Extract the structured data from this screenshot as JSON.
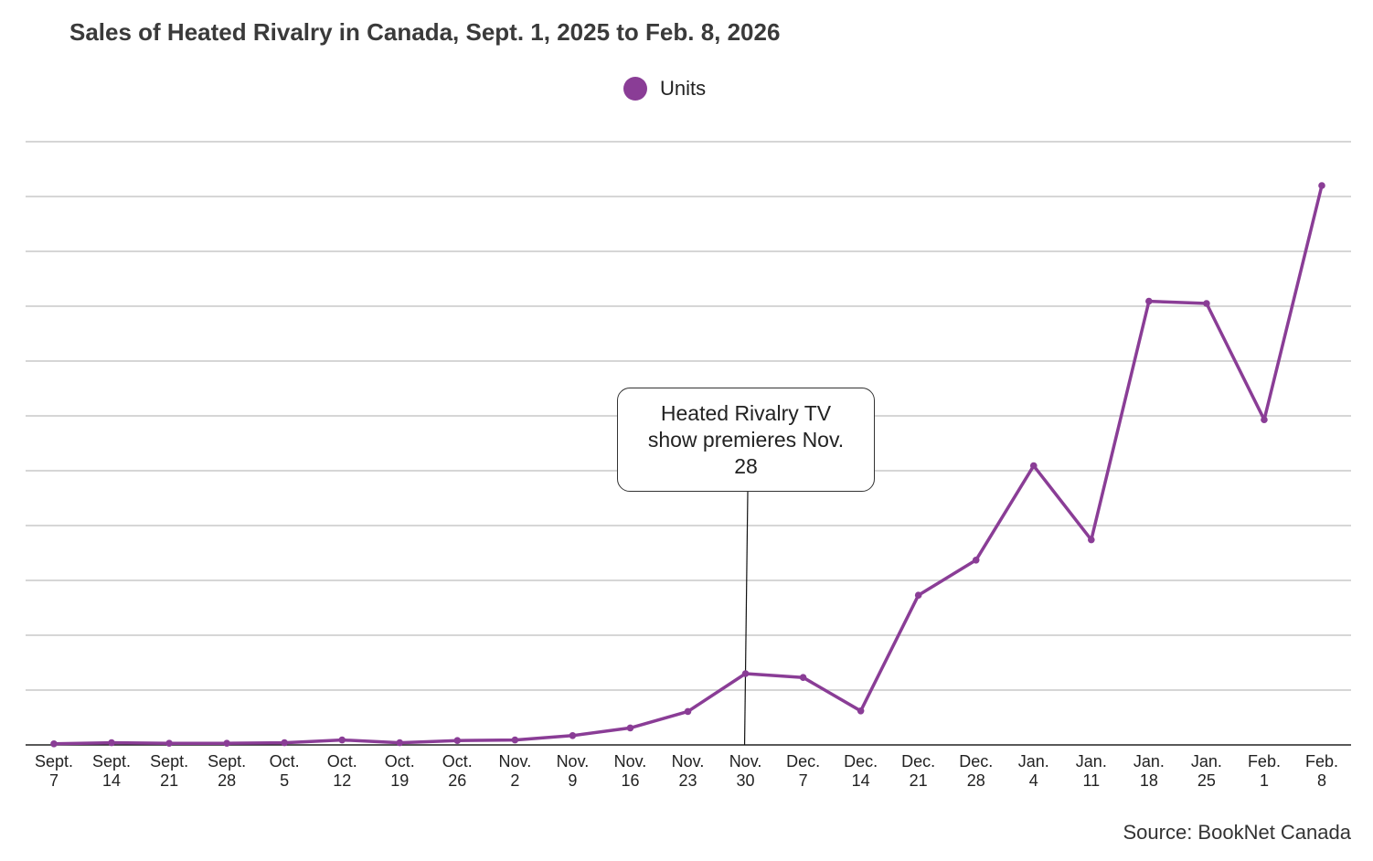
{
  "title": "Sales of Heated Rivalry in Canada, Sept. 1, 2025 to Feb. 8, 2026",
  "source": "Source: BookNet Canada",
  "annotation": {
    "text": "Heated Rivalry TV show premieres Nov. 28",
    "category": "Nov. 30"
  },
  "colors": {
    "series": "#8a3d96",
    "grid": "#c8c8c8",
    "axis": "#222222"
  },
  "chart_data": {
    "type": "line",
    "title": "Sales of Heated Rivalry in Canada, Sept. 1, 2025 to Feb. 8, 2026",
    "xlabel": "",
    "ylabel": "",
    "grid": true,
    "y_tick_labels_shown": false,
    "legend_placement": "top-center",
    "ylim": [
      0,
      11
    ],
    "categories": [
      [
        "Sept.",
        "7"
      ],
      [
        "Sept.",
        "14"
      ],
      [
        "Sept.",
        "21"
      ],
      [
        "Sept.",
        "28"
      ],
      [
        "Oct.",
        "5"
      ],
      [
        "Oct.",
        "12"
      ],
      [
        "Oct.",
        "19"
      ],
      [
        "Oct.",
        "26"
      ],
      [
        "Nov.",
        "2"
      ],
      [
        "Nov.",
        "9"
      ],
      [
        "Nov.",
        "16"
      ],
      [
        "Nov.",
        "23"
      ],
      [
        "Nov.",
        "30"
      ],
      [
        "Dec.",
        "7"
      ],
      [
        "Dec.",
        "14"
      ],
      [
        "Dec.",
        "21"
      ],
      [
        "Dec.",
        "28"
      ],
      [
        "Jan.",
        "4"
      ],
      [
        "Jan.",
        "11"
      ],
      [
        "Jan.",
        "18"
      ],
      [
        "Jan.",
        "25"
      ],
      [
        "Feb.",
        "1"
      ],
      [
        "Feb.",
        "8"
      ]
    ],
    "series": [
      {
        "name": "Units",
        "values": [
          0.02,
          0.04,
          0.03,
          0.03,
          0.04,
          0.09,
          0.04,
          0.08,
          0.09,
          0.17,
          0.31,
          0.61,
          1.3,
          1.23,
          0.62,
          2.73,
          3.37,
          5.09,
          3.74,
          8.09,
          8.05,
          5.93,
          10.2
        ]
      }
    ]
  }
}
